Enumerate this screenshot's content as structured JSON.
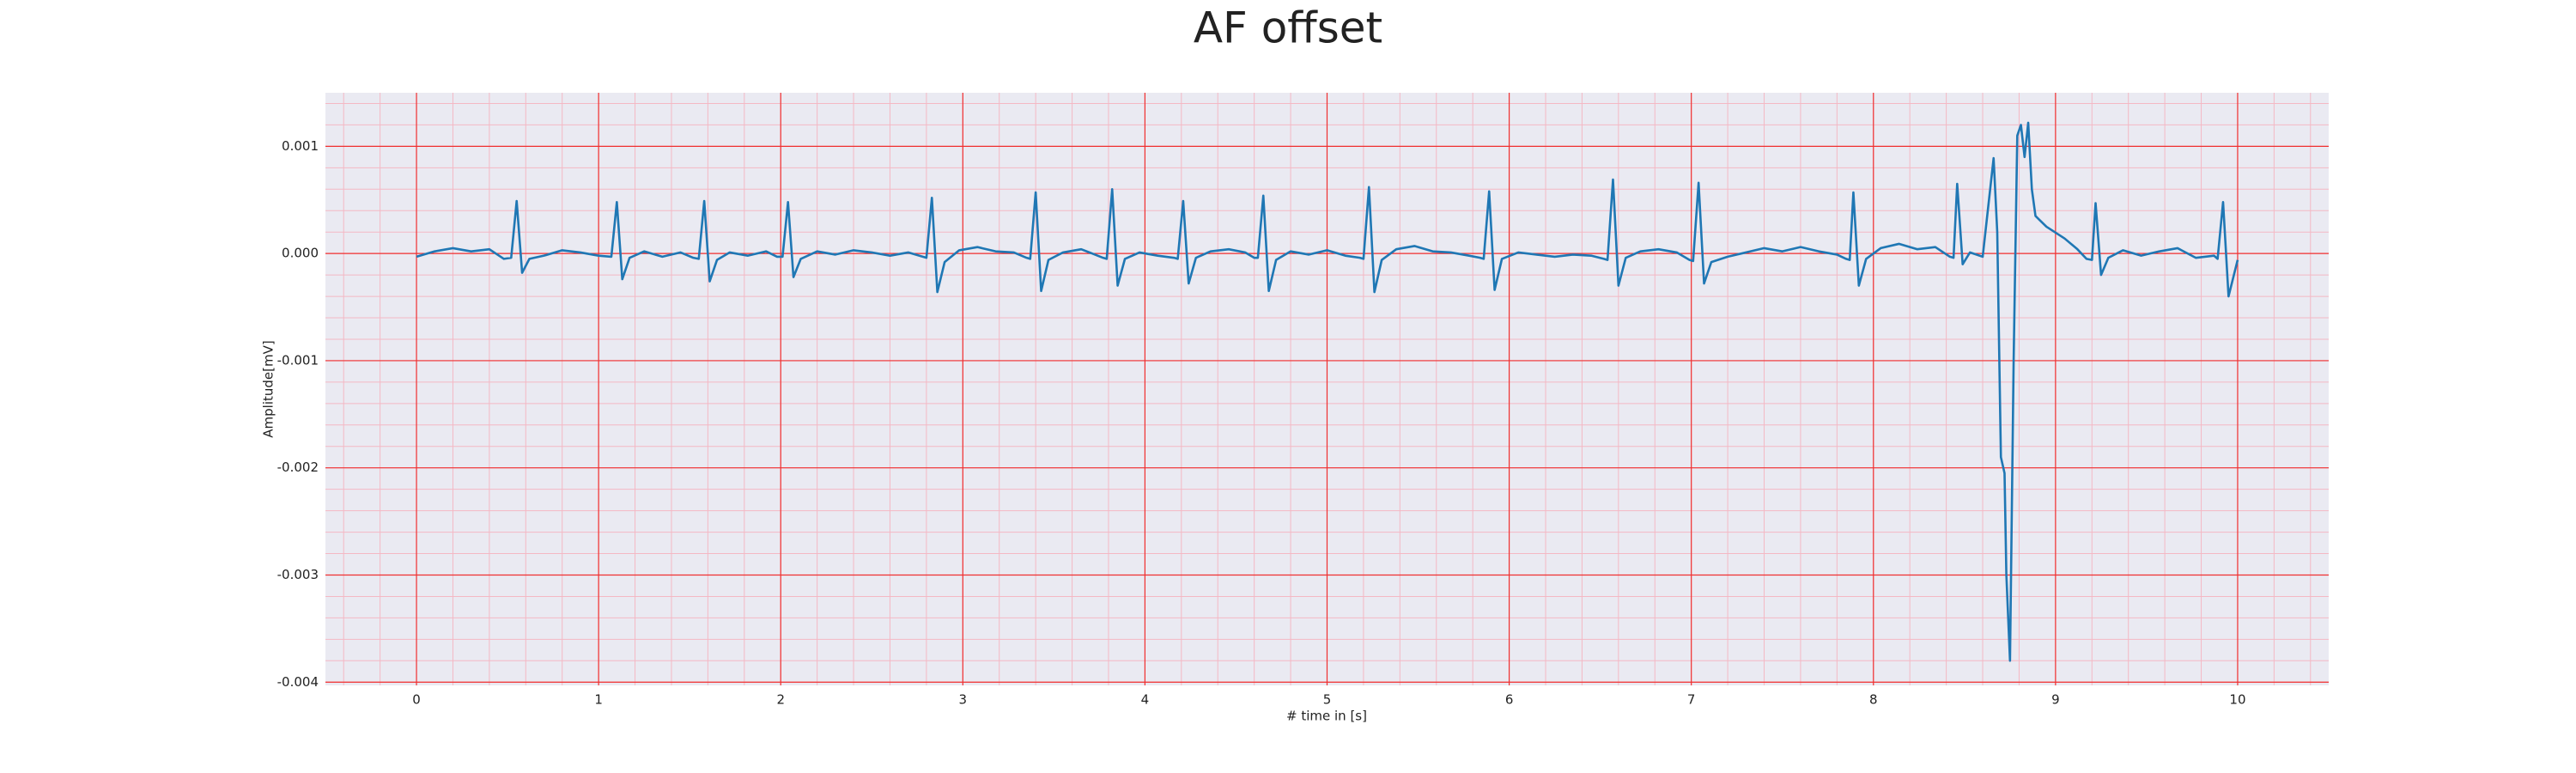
{
  "chart_data": {
    "type": "line",
    "title": "AF offset",
    "xlabel": "# time in [s]",
    "ylabel": "Amplitude[mV]",
    "color": "#1f77b4",
    "grid": true,
    "minor_grid": true,
    "xlim": [
      -0.5,
      10.5
    ],
    "xticks": [
      0,
      1,
      2,
      3,
      4,
      5,
      6,
      7,
      8,
      9,
      10
    ],
    "ylim": [
      -0.00403,
      0.0015
    ],
    "yticks": [
      0.001,
      {
        "value": 0,
        "label": "0.000"
      },
      -0.001,
      -0.002,
      -0.003,
      -0.004
    ],
    "x": [
      0,
      0.1,
      0.2,
      0.3,
      0.4,
      0.48,
      0.52,
      0.55,
      0.58,
      0.62,
      0.7,
      0.8,
      0.9,
      1.0,
      1.07,
      1.1,
      1.13,
      1.17,
      1.25,
      1.35,
      1.45,
      1.52,
      1.55,
      1.58,
      1.61,
      1.65,
      1.72,
      1.82,
      1.92,
      1.98,
      2.01,
      2.04,
      2.07,
      2.11,
      2.2,
      2.3,
      2.4,
      2.5,
      2.6,
      2.7,
      2.78,
      2.8,
      2.83,
      2.86,
      2.9,
      2.98,
      3.08,
      3.18,
      3.28,
      3.35,
      3.37,
      3.4,
      3.43,
      3.47,
      3.55,
      3.65,
      3.77,
      3.79,
      3.82,
      3.85,
      3.89,
      3.97,
      4.07,
      4.16,
      4.18,
      4.21,
      4.24,
      4.28,
      4.36,
      4.46,
      4.55,
      4.6,
      4.62,
      4.65,
      4.68,
      4.72,
      4.8,
      4.9,
      5.0,
      5.1,
      5.18,
      5.2,
      5.23,
      5.26,
      5.3,
      5.38,
      5.48,
      5.58,
      5.68,
      5.78,
      5.84,
      5.86,
      5.89,
      5.92,
      5.96,
      6.05,
      6.15,
      6.25,
      6.35,
      6.45,
      6.52,
      6.54,
      6.57,
      6.6,
      6.64,
      6.72,
      6.82,
      6.92,
      6.99,
      7.01,
      7.04,
      7.07,
      7.11,
      7.2,
      7.3,
      7.4,
      7.5,
      7.6,
      7.7,
      7.8,
      7.85,
      7.87,
      7.89,
      7.92,
      7.96,
      8.04,
      8.14,
      8.24,
      8.34,
      8.42,
      8.44,
      8.46,
      8.49,
      8.53,
      8.6,
      8.66,
      8.68,
      8.7,
      8.72,
      8.73,
      8.75,
      8.77,
      8.79,
      8.81,
      8.83,
      8.85,
      8.87,
      8.89,
      8.95,
      9.05,
      9.12,
      9.17,
      9.2,
      9.22,
      9.25,
      9.29,
      9.37,
      9.47,
      9.57,
      9.67,
      9.77,
      9.87,
      9.89,
      9.92,
      9.95,
      10.0
    ],
    "values": [
      -3e-05,
      2e-05,
      5e-05,
      2e-05,
      4e-05,
      -5e-05,
      -4e-05,
      0.00049,
      -0.00018,
      -5e-05,
      -2e-05,
      3e-05,
      1e-05,
      -2e-05,
      -3e-05,
      0.00048,
      -0.00024,
      -4e-05,
      2e-05,
      -3e-05,
      1e-05,
      -4e-05,
      -5e-05,
      0.00049,
      -0.00026,
      -6e-05,
      1e-05,
      -2e-05,
      2e-05,
      -3e-05,
      -3e-05,
      0.00048,
      -0.00022,
      -5e-05,
      2e-05,
      -1e-05,
      3e-05,
      1e-05,
      -2e-05,
      1e-05,
      -3e-05,
      -4e-05,
      0.00052,
      -0.00036,
      -8e-05,
      3e-05,
      6e-05,
      2e-05,
      1e-05,
      -4e-05,
      -5e-05,
      0.00057,
      -0.00035,
      -6e-05,
      1e-05,
      4e-05,
      -4e-05,
      -5e-05,
      0.0006,
      -0.0003,
      -5e-05,
      1e-05,
      -2e-05,
      -4e-05,
      -5e-05,
      0.00049,
      -0.00028,
      -4e-05,
      2e-05,
      4e-05,
      1e-05,
      -4e-05,
      -4e-05,
      0.00054,
      -0.00035,
      -6e-05,
      2e-05,
      -1e-05,
      3e-05,
      -2e-05,
      -4e-05,
      -5e-05,
      0.00062,
      -0.00036,
      -6e-05,
      4e-05,
      7e-05,
      2e-05,
      1e-05,
      -2e-05,
      -4e-05,
      -5e-05,
      0.00058,
      -0.00034,
      -5e-05,
      1e-05,
      -1e-05,
      -3e-05,
      -1e-05,
      -2e-05,
      -5e-05,
      -6e-05,
      0.00069,
      -0.0003,
      -4e-05,
      2e-05,
      4e-05,
      1e-05,
      -6e-05,
      -7e-05,
      0.00066,
      -0.00028,
      -8e-05,
      -3e-05,
      1e-05,
      5e-05,
      2e-05,
      6e-05,
      2e-05,
      -1e-05,
      -5e-05,
      -6e-05,
      0.00057,
      -0.0003,
      -5e-05,
      5e-05,
      9e-05,
      4e-05,
      6e-05,
      -3e-05,
      -4e-05,
      0.00065,
      -0.0001,
      1e-05,
      -3e-05,
      0.00089,
      0.0002,
      -0.0019,
      -0.00205,
      -0.003,
      -0.0038,
      -0.001,
      0.0011,
      0.0012,
      0.0009,
      0.00122,
      0.0006,
      0.00035,
      0.00025,
      0.00014,
      4e-05,
      -5e-05,
      -6e-05,
      0.00047,
      -0.0002,
      -4e-05,
      3e-05,
      -2e-05,
      2e-05,
      5e-05,
      -4e-05,
      -2e-05,
      -5e-05,
      0.00048,
      -0.0004,
      -6e-05
    ]
  }
}
